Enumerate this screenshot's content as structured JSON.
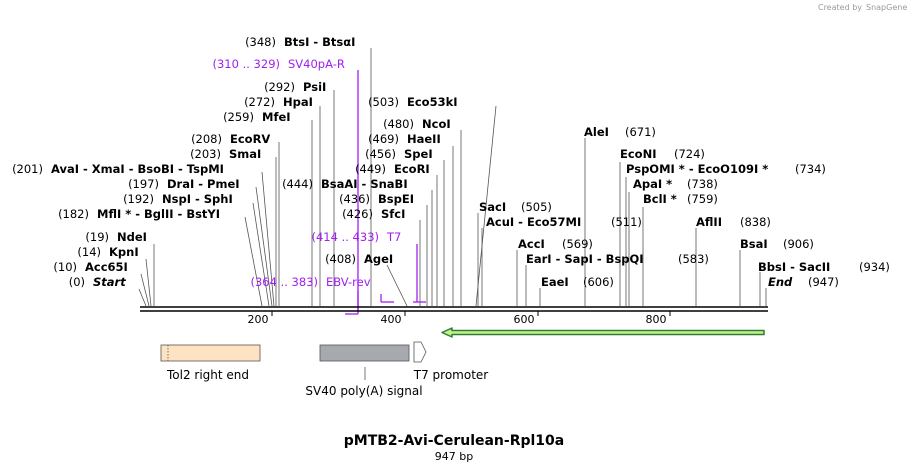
{
  "credit": {
    "prefix": "Created by",
    "brand": "SnapGene"
  },
  "title": "pMTB2-Avi-Cerulean-Rpl10a",
  "subtitle": "947 bp",
  "colors": {
    "primer": "#a020f0",
    "arrow_fill": "#c7f08a",
    "arrow_stroke": "#2e7d32",
    "tol2": "#fde3c2",
    "sv40": "#a6a9ad"
  },
  "ruler": {
    "start": 0,
    "end": 947,
    "ticks": [
      200,
      400,
      600,
      800
    ]
  },
  "sites": [
    {
      "pos": "(348)",
      "name": "BtsI  - BtsαI"
    },
    {
      "pos": "(292)",
      "name": "PsiI"
    },
    {
      "pos": "(272)",
      "name": "HpaI"
    },
    {
      "pos": "(259)",
      "name": "MfeI"
    },
    {
      "pos": "(208)",
      "name": "EcoRV"
    },
    {
      "pos": "(203)",
      "name": "SmaI"
    },
    {
      "pos": "(201)",
      "name": "AvaI  - XmaI  - BsoBI  - TspMI"
    },
    {
      "pos": "(197)",
      "name": "DraI  - PmeI"
    },
    {
      "pos": "(192)",
      "name": "NspI  - SphI"
    },
    {
      "pos": "(182)",
      "name": "MflI * - BglII  - BstYI"
    },
    {
      "pos": "(19)",
      "name": "NdeI"
    },
    {
      "pos": "(14)",
      "name": "KpnI"
    },
    {
      "pos": "(10)",
      "name": "Acc65I"
    },
    {
      "pos": "(0)",
      "name": "Start"
    },
    {
      "pos": "(503)",
      "name": "Eco53kI"
    },
    {
      "pos": "(480)",
      "name": "NcoI"
    },
    {
      "pos": "(469)",
      "name": "HaeII"
    },
    {
      "pos": "(456)",
      "name": "SpeI"
    },
    {
      "pos": "(449)",
      "name": "EcoRI"
    },
    {
      "pos": "(444)",
      "name": "BsaAI  - SnaBI"
    },
    {
      "pos": "(436)",
      "name": "BspEI"
    },
    {
      "pos": "(426)",
      "name": "SfcI"
    },
    {
      "pos": "(408)",
      "name": "AgeI"
    },
    {
      "pos": "(671)",
      "name": "AleI"
    },
    {
      "pos": "(724)",
      "name": "EcoNI"
    },
    {
      "pos": "(734)",
      "name": "PspOMI *  - EcoO109I *"
    },
    {
      "pos": "(738)",
      "name": "ApaI *"
    },
    {
      "pos": "(759)",
      "name": "BclI *"
    },
    {
      "pos": "(505)",
      "name": "SacI"
    },
    {
      "pos": "(511)",
      "name": "AcuI  - Eco57MI"
    },
    {
      "pos": "(569)",
      "name": "AccI"
    },
    {
      "pos": "(583)",
      "name": "EarI  - SapI  - BspQI"
    },
    {
      "pos": "(606)",
      "name": "EaeI"
    },
    {
      "pos": "(838)",
      "name": "AflII"
    },
    {
      "pos": "(906)",
      "name": "BsaI"
    },
    {
      "pos": "(934)",
      "name": "BbsI  - SacII"
    },
    {
      "pos": "(947)",
      "name": "End"
    }
  ],
  "primers": [
    {
      "range": "(310 .. 329)",
      "name": "SV40pA-R"
    },
    {
      "range": "(414 .. 433)",
      "name": "T7"
    },
    {
      "range": "(364 .. 383)",
      "name": "EBV-rev"
    }
  ],
  "features": [
    {
      "name": "Tol2 right end"
    },
    {
      "name": "SV40 poly(A) signal"
    },
    {
      "name": "T7 promoter"
    }
  ]
}
